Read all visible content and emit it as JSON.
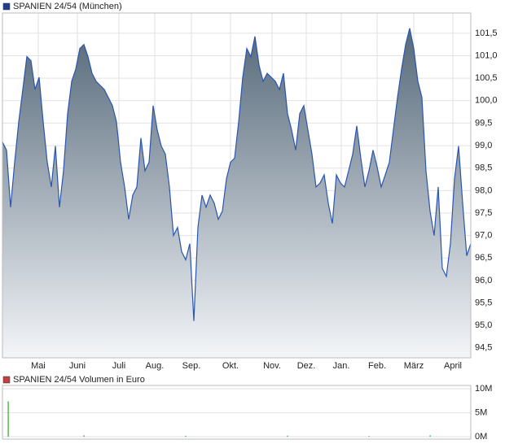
{
  "chart_data": [
    {
      "type": "area",
      "title": "SPANIEN 24/54 (München)",
      "color": "#2a55b0",
      "legend_color": "#1f3f8f",
      "grid": true,
      "values": [
        99.08,
        98.9,
        97.63,
        98.63,
        99.53,
        100.25,
        100.98,
        100.89,
        100.25,
        100.52,
        99.53,
        98.63,
        98.08,
        98.99,
        97.63,
        98.44,
        99.71,
        100.43,
        100.7,
        101.16,
        101.25,
        100.98,
        100.61,
        100.43,
        100.34,
        100.25,
        100.07,
        99.89,
        99.53,
        98.63,
        98.08,
        97.36,
        97.9,
        98.08,
        99.17,
        98.44,
        98.63,
        99.89,
        99.35,
        98.99,
        98.81,
        98.08,
        97.0,
        97.18,
        96.64,
        96.46,
        96.82,
        95.1,
        97.18,
        97.9,
        97.63,
        97.9,
        97.72,
        97.36,
        97.54,
        98.26,
        98.63,
        98.72,
        99.53,
        100.52,
        101.16,
        100.98,
        101.43,
        100.79,
        100.43,
        100.61,
        100.52,
        100.43,
        100.25,
        100.61,
        99.71,
        99.35,
        98.9,
        99.71,
        99.89,
        99.35,
        98.81,
        98.08,
        98.17,
        98.35,
        97.72,
        97.27,
        98.35,
        98.17,
        98.08,
        98.44,
        98.81,
        99.44,
        98.72,
        98.08,
        98.44,
        98.9,
        98.53,
        98.08,
        98.35,
        98.63,
        99.35,
        100.07,
        100.7,
        101.25,
        101.61,
        101.16,
        100.43,
        100.07,
        98.44,
        97.54,
        97.0,
        98.08,
        96.27,
        96.09,
        96.82,
        98.26,
        98.99,
        97.72,
        96.55,
        96.82
      ],
      "xlim": [
        0,
        115
      ],
      "xticks": [
        {
          "value": 8.8,
          "label": "Mai"
        },
        {
          "value": 18.4,
          "label": "Juni"
        },
        {
          "value": 28.6,
          "label": "Juli"
        },
        {
          "value": 37.4,
          "label": "Aug."
        },
        {
          "value": 46.4,
          "label": "Sep."
        },
        {
          "value": 56,
          "label": "Okt."
        },
        {
          "value": 66.2,
          "label": "Nov."
        },
        {
          "value": 74.6,
          "label": "Dez."
        },
        {
          "value": 83.2,
          "label": "Jan."
        },
        {
          "value": 92,
          "label": "Feb."
        },
        {
          "value": 101,
          "label": "März"
        },
        {
          "value": 110.6,
          "label": "April"
        }
      ],
      "ylim": [
        94.28,
        101.95
      ],
      "yticks": [
        {
          "value": 94.5,
          "label": "94,5"
        },
        {
          "value": 95,
          "label": "95,0"
        },
        {
          "value": 95.5,
          "label": "95,5"
        },
        {
          "value": 96,
          "label": "96,0"
        },
        {
          "value": 96.5,
          "label": "96,5"
        },
        {
          "value": 97,
          "label": "97,0"
        },
        {
          "value": 97.5,
          "label": "97,5"
        },
        {
          "value": 98,
          "label": "98,0"
        },
        {
          "value": 98.5,
          "label": "98,5"
        },
        {
          "value": 99,
          "label": "99,0"
        },
        {
          "value": 99.5,
          "label": "99,5"
        },
        {
          "value": 100,
          "label": "100,0"
        },
        {
          "value": 100.5,
          "label": "100,5"
        },
        {
          "value": 101,
          "label": "101,0"
        },
        {
          "value": 101.5,
          "label": "101,5"
        }
      ]
    },
    {
      "type": "bar",
      "title": "SPANIEN 24/54 Volumen in Euro",
      "color": "#33aa33",
      "legend_color": "#c04040",
      "grid": true,
      "x": [
        1.4,
        20,
        45,
        70,
        90,
        105
      ],
      "values": [
        7400000,
        300000,
        200000,
        250000,
        150000,
        300000
      ],
      "xlim": [
        0,
        115
      ],
      "ylim": [
        -500000,
        10700000
      ],
      "yticks": [
        {
          "value": 0,
          "label": "0M"
        },
        {
          "value": 5000000,
          "label": "5M"
        },
        {
          "value": 10000000,
          "label": "10M"
        }
      ]
    }
  ]
}
